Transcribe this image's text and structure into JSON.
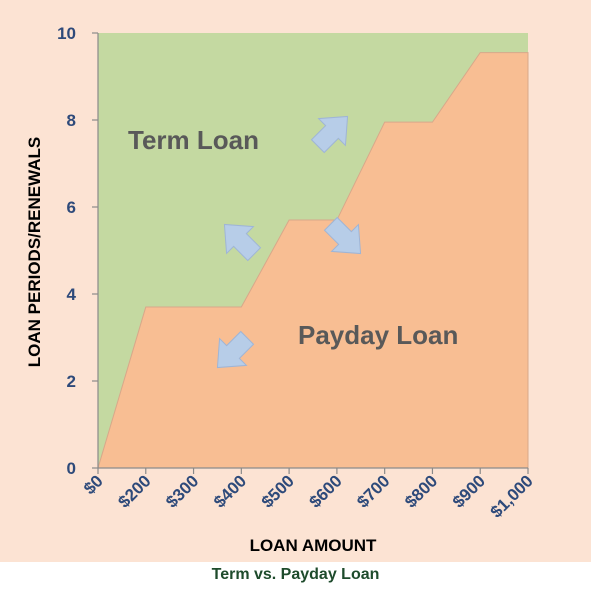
{
  "chart_data": {
    "type": "area",
    "title": "",
    "xlabel": "LOAN AMOUNT",
    "ylabel": "LOAN PERIODS/RENEWALS",
    "categories": [
      "$0",
      "$200",
      "$300",
      "$400",
      "$500",
      "$600",
      "$700",
      "$800",
      "$900",
      "$1,000"
    ],
    "ylim": [
      0,
      10
    ],
    "yticks": [
      "0",
      "2",
      "4",
      "6",
      "8",
      "10"
    ],
    "grid": false,
    "series": [
      {
        "name": "Payday Loan",
        "values": [
          0,
          3.7,
          3.7,
          3.7,
          5.7,
          5.7,
          7.95,
          7.95,
          9.55,
          9.55
        ],
        "color": "#f8be93"
      }
    ],
    "upper_region_label": "Term Loan",
    "upper_region_color": "#c4d9a1",
    "arrow_color": "#b7cde8",
    "annotations": [
      "Term Loan",
      "Payday Loan"
    ]
  },
  "caption": "Term vs. Payday Loan"
}
